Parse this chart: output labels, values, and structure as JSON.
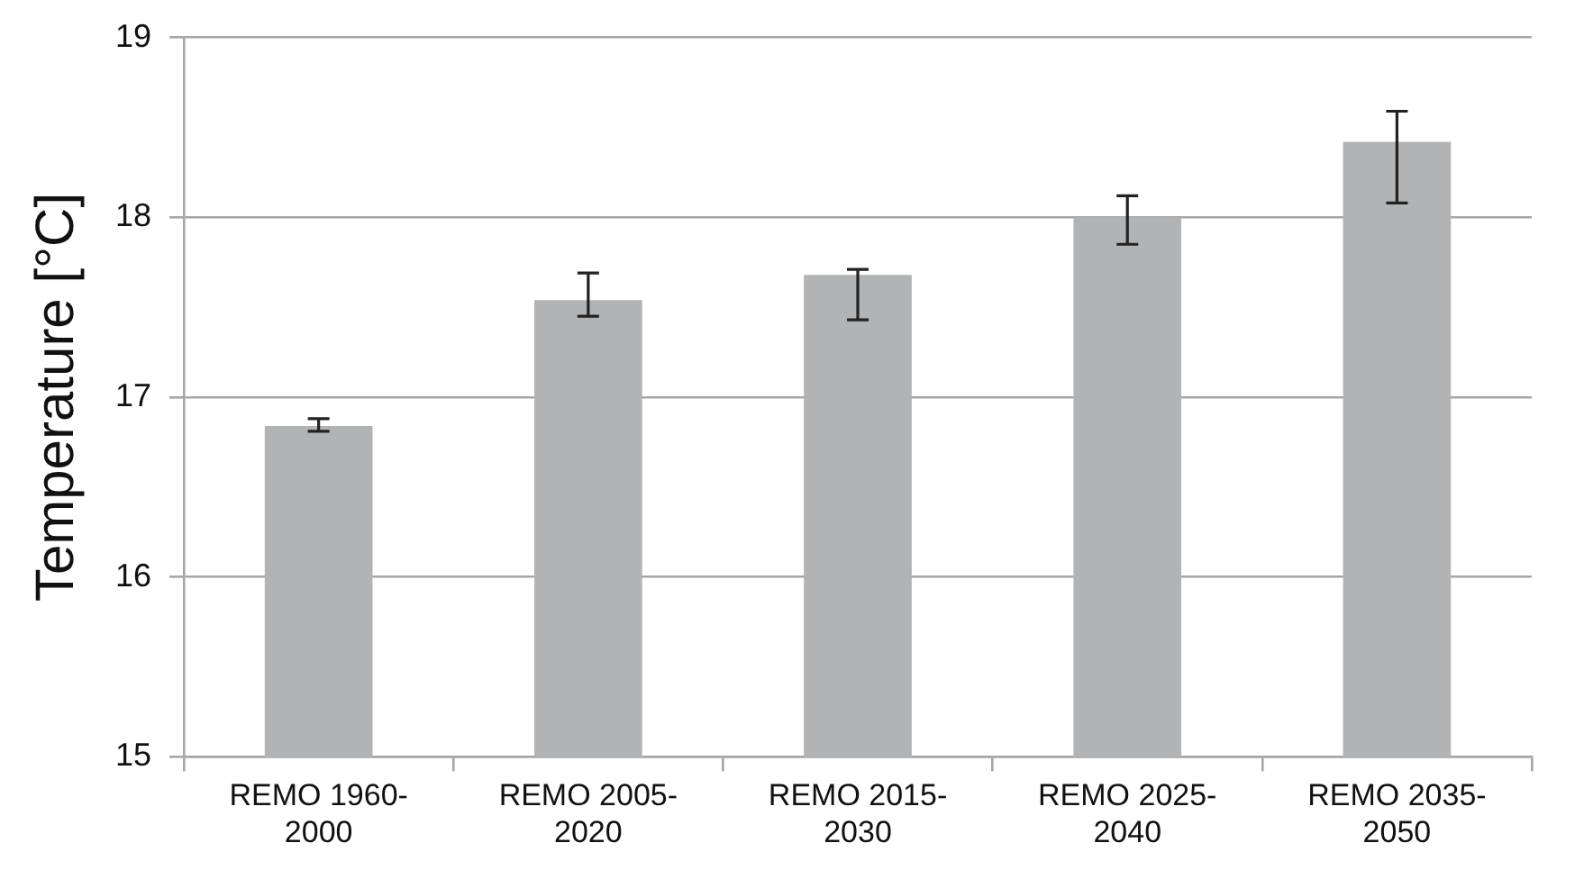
{
  "chart_data": {
    "type": "bar",
    "ylabel": "Temperature [°C]",
    "categories": [
      "REMO 1960-2000",
      "REMO 2005-2020",
      "REMO 2015-2030",
      "REMO 2025-2040",
      "REMO 2035-2050"
    ],
    "values": [
      16.84,
      17.54,
      17.68,
      18.0,
      18.42
    ],
    "errors": [
      [
        16.81,
        16.88
      ],
      [
        17.45,
        17.69
      ],
      [
        17.43,
        17.71
      ],
      [
        17.85,
        18.12
      ],
      [
        18.08,
        18.59
      ]
    ],
    "color": "#b2b3b5",
    "ylim": [
      15,
      19
    ],
    "yticks": [
      15,
      16,
      17,
      18,
      19
    ],
    "grid": "y",
    "legend": false
  }
}
